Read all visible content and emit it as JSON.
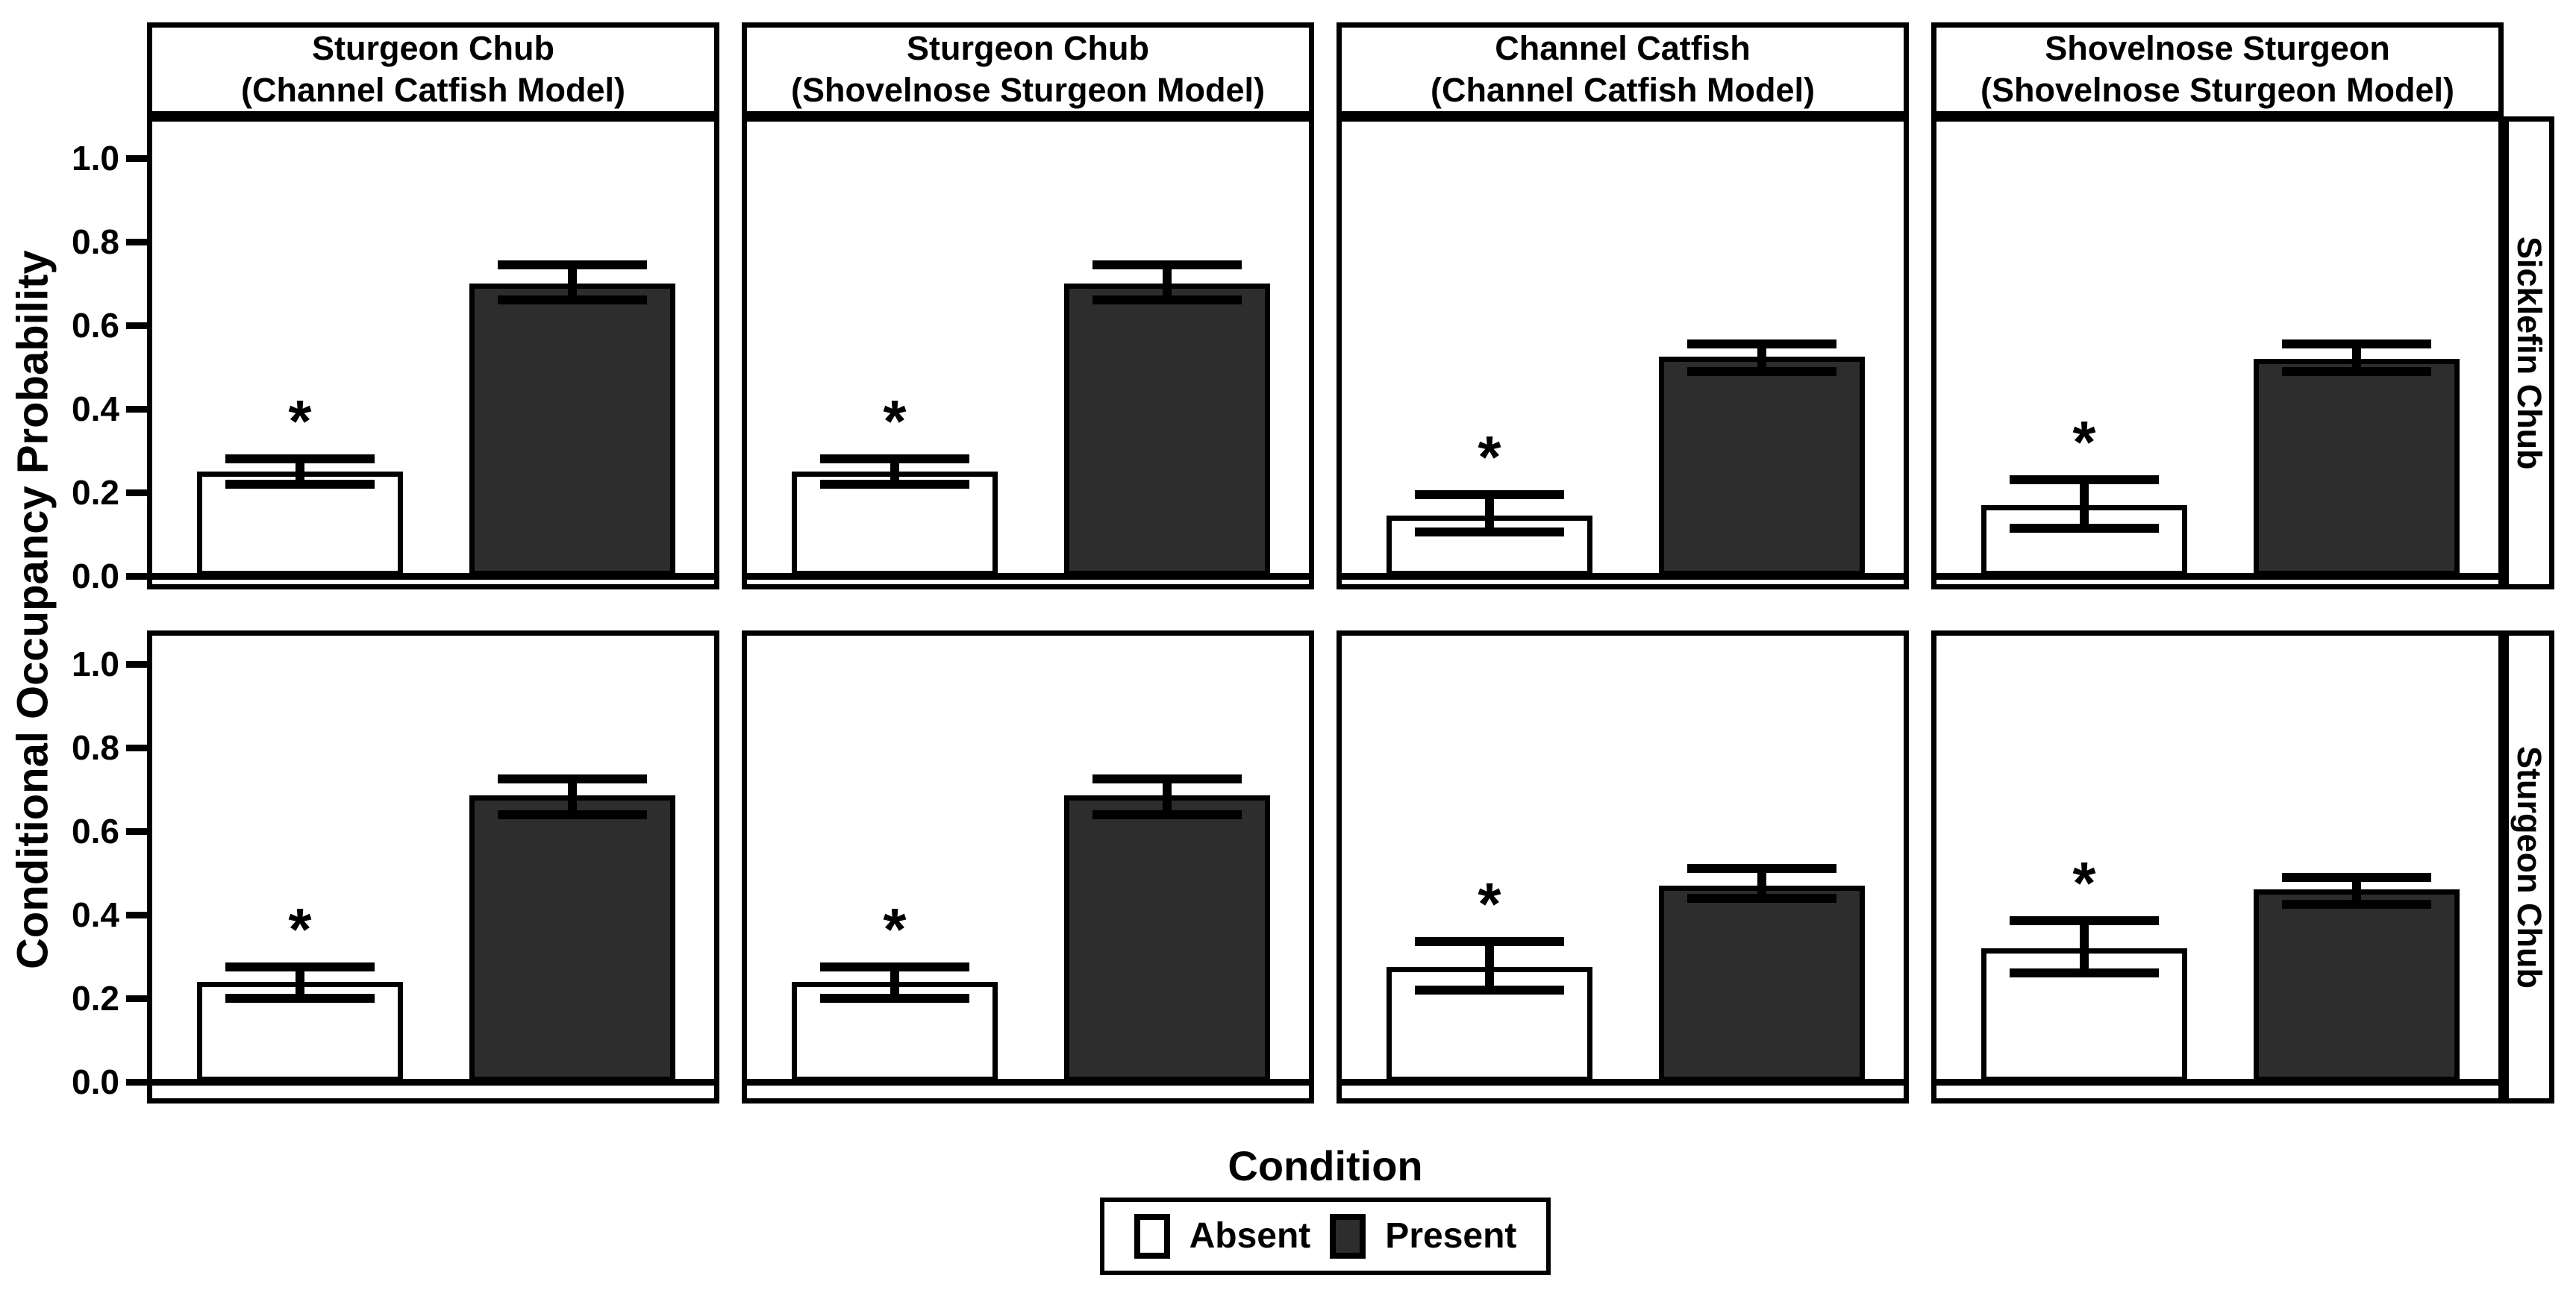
{
  "chart_data": {
    "type": "bar",
    "ylabel": "Conditional Occupancy Probability",
    "xlabel": "Condition",
    "ylim": [
      0,
      1.05
    ],
    "yticks": [
      1.0,
      0.8,
      0.6,
      0.4,
      0.2,
      0.0
    ],
    "ytick_labels": [
      "1.0",
      "0.8",
      "0.6",
      "0.4",
      "0.2",
      "0.0"
    ],
    "grid": "off",
    "legend_position": "bottom-center",
    "significance_marker": "*",
    "legend": {
      "title": "Condition",
      "entries": [
        {
          "label": "Absent",
          "fill": "#ffffff"
        },
        {
          "label": "Present",
          "fill": "#2d2d2d"
        }
      ]
    },
    "row_labels": [
      "Sicklefin Chub",
      "Sturgeon Chub"
    ],
    "col_titles": [
      [
        "Sturgeon Chub",
        "(Channel Catfish Model)"
      ],
      [
        "Sturgeon Chub",
        "(Shovelnose Sturgeon Model)"
      ],
      [
        "Channel Catfish",
        "(Channel Catfish Model)"
      ],
      [
        "Shovelnose Sturgeon",
        "(Shovelnose Sturgeon Model)"
      ]
    ],
    "panels": [
      {
        "row": "Sicklefin Chub",
        "col": "Sturgeon Chub (Channel Catfish Model)",
        "bars": [
          {
            "condition": "Absent",
            "value": 0.25,
            "ci_low": 0.22,
            "ci_high": 0.28,
            "significant": true
          },
          {
            "condition": "Present",
            "value": 0.7,
            "ci_low": 0.66,
            "ci_high": 0.745,
            "significant": false
          }
        ]
      },
      {
        "row": "Sicklefin Chub",
        "col": "Sturgeon Chub (Shovelnose Sturgeon Model)",
        "bars": [
          {
            "condition": "Absent",
            "value": 0.25,
            "ci_low": 0.22,
            "ci_high": 0.28,
            "significant": true
          },
          {
            "condition": "Present",
            "value": 0.7,
            "ci_low": 0.66,
            "ci_high": 0.745,
            "significant": false
          }
        ]
      },
      {
        "row": "Sicklefin Chub",
        "col": "Channel Catfish (Channel Catfish Model)",
        "bars": [
          {
            "condition": "Absent",
            "value": 0.145,
            "ci_low": 0.105,
            "ci_high": 0.195,
            "significant": true
          },
          {
            "condition": "Present",
            "value": 0.525,
            "ci_low": 0.49,
            "ci_high": 0.555,
            "significant": false
          }
        ]
      },
      {
        "row": "Sicklefin Chub",
        "col": "Shovelnose Sturgeon (Shovelnose Sturgeon Model)",
        "bars": [
          {
            "condition": "Absent",
            "value": 0.17,
            "ci_low": 0.115,
            "ci_high": 0.23,
            "significant": true
          },
          {
            "condition": "Present",
            "value": 0.52,
            "ci_low": 0.49,
            "ci_high": 0.555,
            "significant": false
          }
        ]
      },
      {
        "row": "Sturgeon Chub",
        "col": "Sturgeon Chub (Channel Catfish Model)",
        "bars": [
          {
            "condition": "Absent",
            "value": 0.24,
            "ci_low": 0.2,
            "ci_high": 0.275,
            "significant": true
          },
          {
            "condition": "Present",
            "value": 0.685,
            "ci_low": 0.64,
            "ci_high": 0.725,
            "significant": false
          }
        ]
      },
      {
        "row": "Sturgeon Chub",
        "col": "Sturgeon Chub (Shovelnose Sturgeon Model)",
        "bars": [
          {
            "condition": "Absent",
            "value": 0.24,
            "ci_low": 0.2,
            "ci_high": 0.275,
            "significant": true
          },
          {
            "condition": "Present",
            "value": 0.685,
            "ci_low": 0.64,
            "ci_high": 0.725,
            "significant": false
          }
        ]
      },
      {
        "row": "Sturgeon Chub",
        "col": "Channel Catfish (Channel Catfish Model)",
        "bars": [
          {
            "condition": "Absent",
            "value": 0.275,
            "ci_low": 0.22,
            "ci_high": 0.335,
            "significant": true
          },
          {
            "condition": "Present",
            "value": 0.47,
            "ci_low": 0.44,
            "ci_high": 0.51,
            "significant": false
          }
        ]
      },
      {
        "row": "Sturgeon Chub",
        "col": "Shovelnose Sturgeon (Shovelnose Sturgeon Model)",
        "bars": [
          {
            "condition": "Absent",
            "value": 0.32,
            "ci_low": 0.26,
            "ci_high": 0.385,
            "significant": true
          },
          {
            "condition": "Present",
            "value": 0.46,
            "ci_low": 0.425,
            "ci_high": 0.49,
            "significant": false
          }
        ]
      }
    ]
  }
}
